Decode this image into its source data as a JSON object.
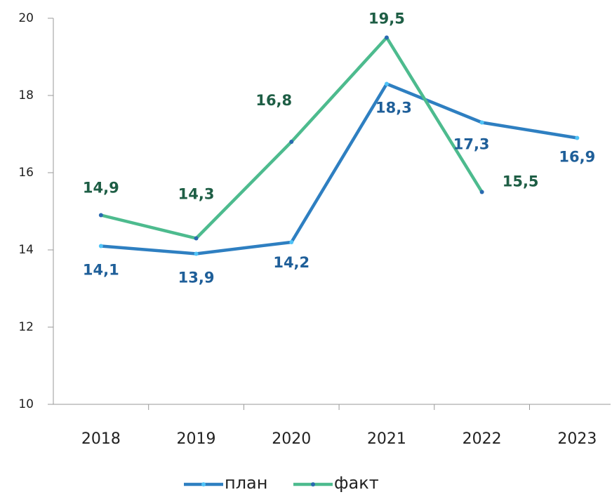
{
  "chart_data": {
    "type": "line",
    "categories": [
      "2018",
      "2019",
      "2020",
      "2021",
      "2022",
      "2023"
    ],
    "series": [
      {
        "name": "план",
        "color": "#2e7fc1",
        "label_color": "#1f5f99",
        "marker_color": "#4fc3f7",
        "values": [
          14.1,
          13.9,
          14.2,
          18.3,
          17.3,
          16.9
        ],
        "value_labels": [
          "14,1",
          "13,9",
          "14,2",
          "18,3",
          "17,3",
          "16,9"
        ]
      },
      {
        "name": "факт",
        "color": "#4dbb8e",
        "label_color": "#1e5e45",
        "marker_color": "#2a6ab0",
        "values": [
          14.9,
          14.3,
          16.8,
          19.5,
          15.5,
          null
        ],
        "value_labels": [
          "14,9",
          "14,3",
          "16,8",
          "19,5",
          "15,5",
          null
        ]
      }
    ],
    "ylim": [
      10,
      20
    ],
    "yticks": [
      10,
      12,
      14,
      16,
      18,
      20
    ],
    "grid": false,
    "legend": "bottom"
  }
}
